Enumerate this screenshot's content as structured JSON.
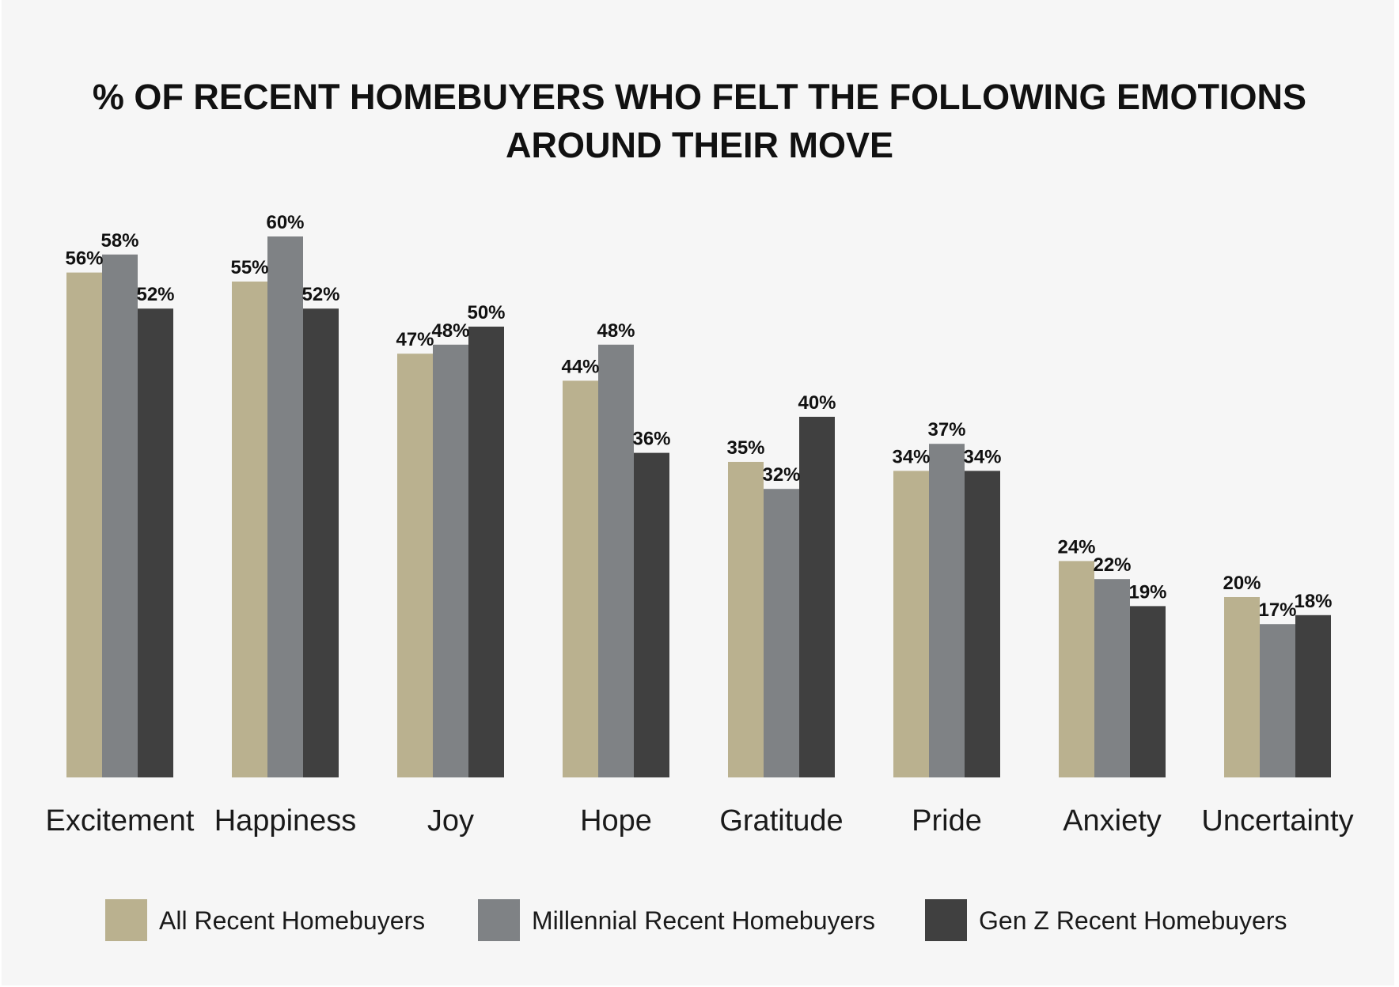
{
  "chart_data": {
    "type": "bar",
    "title": "% OF RECENT HOMEBUYERS WHO FELT THE FOLLOWING EMOTIONS AROUND THEIR MOVE",
    "title_lines": [
      "% OF RECENT HOMEBUYERS WHO FELT THE FOLLOWING EMOTIONS",
      "AROUND THEIR MOVE"
    ],
    "categories": [
      "Excitement",
      "Happiness",
      "Joy",
      "Hope",
      "Gratitude",
      "Pride",
      "Anxiety",
      "Uncertainty"
    ],
    "series": [
      {
        "name": "All Recent Homebuyers",
        "color": "#bab18f",
        "values": [
          56,
          55,
          47,
          44,
          35,
          34,
          24,
          20
        ],
        "labels": [
          "56%",
          "55%",
          "47%",
          "44%",
          "35%",
          "34%",
          "24%",
          "20%"
        ]
      },
      {
        "name": "Millennial Recent Homebuyers",
        "color": "#7f8285",
        "values": [
          58,
          60,
          48,
          48,
          32,
          37,
          22,
          17
        ],
        "labels": [
          "58%",
          "60%",
          "48%",
          "48%",
          "32%",
          "37%",
          "22%",
          "17%"
        ]
      },
      {
        "name": "Gen Z Recent Homebuyers",
        "color": "#404040",
        "values": [
          52,
          52,
          50,
          36,
          40,
          34,
          19,
          18
        ],
        "labels": [
          "52%",
          "52%",
          "50%",
          "36%",
          "40%",
          "34%",
          "19%",
          "18%"
        ]
      }
    ],
    "xlabel": "",
    "ylabel": "",
    "ylim": [
      0,
      60
    ],
    "grid": false,
    "legend": "bottom",
    "background_color": "#f6f6f6"
  }
}
